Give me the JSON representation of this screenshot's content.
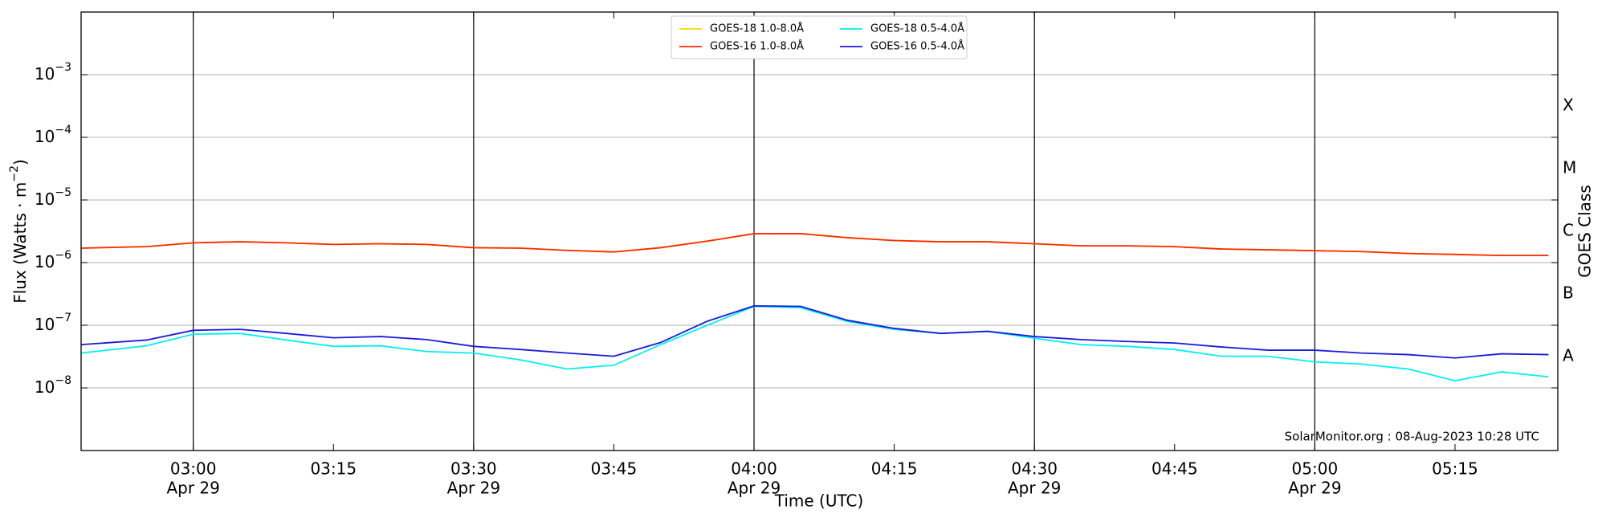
{
  "chart_data": {
    "type": "line",
    "xlabel": "Time (UTC)",
    "ylabel": {
      "text": "Flux (Watts · m",
      "sup": "−2",
      "end": ")"
    },
    "y2label": "GOES Class",
    "annotation": "SolarMonitor.org : 08-Aug-2023 10:28 UTC",
    "log_y": true,
    "grid": true,
    "legend": "top-center",
    "xlim": [
      "02:48",
      "05:26"
    ],
    "xticks": [
      {
        "value": "03:00",
        "label": "03:00",
        "date": "Apr 29"
      },
      {
        "value": "03:15",
        "label": "03:15"
      },
      {
        "value": "03:30",
        "label": "03:30",
        "date": "Apr 29"
      },
      {
        "value": "03:45",
        "label": "03:45"
      },
      {
        "value": "04:00",
        "label": "04:00",
        "date": "Apr 29"
      },
      {
        "value": "04:15",
        "label": "04:15"
      },
      {
        "value": "04:30",
        "label": "04:30",
        "date": "Apr 29"
      },
      {
        "value": "04:45",
        "label": "04:45"
      },
      {
        "value": "05:00",
        "label": "05:00",
        "date": "Apr 29"
      },
      {
        "value": "05:15",
        "label": "05:15"
      }
    ],
    "ylim": [
      1e-09,
      0.01
    ],
    "yticks": [
      {
        "value": 1e-08,
        "label": "10",
        "sup": "−8"
      },
      {
        "value": 1e-07,
        "label": "10",
        "sup": "−7"
      },
      {
        "value": 1e-06,
        "label": "10",
        "sup": "−6"
      },
      {
        "value": 1e-05,
        "label": "10",
        "sup": "−5"
      },
      {
        "value": 0.0001,
        "label": "10",
        "sup": "−4"
      },
      {
        "value": 0.001,
        "label": "10",
        "sup": "−3"
      }
    ],
    "y2ticks": [
      {
        "value": 3.162e-08,
        "label": "A"
      },
      {
        "value": 3.162e-07,
        "label": "B"
      },
      {
        "value": 3.162e-06,
        "label": "C"
      },
      {
        "value": 3.162e-05,
        "label": "M"
      },
      {
        "value": 0.0003162,
        "label": "X"
      }
    ],
    "x": [
      "02:48",
      "02:55",
      "03:00",
      "03:05",
      "03:10",
      "03:15",
      "03:20",
      "03:25",
      "03:30",
      "03:35",
      "03:40",
      "03:45",
      "03:50",
      "03:55",
      "04:00",
      "04:05",
      "04:10",
      "04:15",
      "04:20",
      "04:25",
      "04:30",
      "04:35",
      "04:40",
      "04:45",
      "04:50",
      "04:55",
      "05:00",
      "05:05",
      "05:10",
      "05:15",
      "05:20",
      "05:25"
    ],
    "series": [
      {
        "name": "GOES-18 1.0-8.0Å",
        "color": "#ffd700",
        "values": [
          1.7e-06,
          1.8e-06,
          2.07e-06,
          2.15e-06,
          2.07e-06,
          1.95e-06,
          2e-06,
          1.95e-06,
          1.73e-06,
          1.7e-06,
          1.57e-06,
          1.48e-06,
          1.73e-06,
          2.2e-06,
          2.9e-06,
          2.9e-06,
          2.5e-06,
          2.25e-06,
          2.15e-06,
          2.15e-06,
          2e-06,
          1.85e-06,
          1.85e-06,
          1.8e-06,
          1.65e-06,
          1.6e-06,
          1.55e-06,
          1.5e-06,
          1.4e-06,
          1.35e-06,
          1.3e-06,
          1.3e-06
        ]
      },
      {
        "name": "GOES-16 1.0-8.0Å",
        "color": "#ff2a00",
        "values": [
          1.7e-06,
          1.8e-06,
          2.07e-06,
          2.15e-06,
          2.07e-06,
          1.95e-06,
          2e-06,
          1.95e-06,
          1.73e-06,
          1.7e-06,
          1.57e-06,
          1.48e-06,
          1.73e-06,
          2.2e-06,
          2.9e-06,
          2.9e-06,
          2.5e-06,
          2.25e-06,
          2.15e-06,
          2.15e-06,
          2e-06,
          1.85e-06,
          1.85e-06,
          1.8e-06,
          1.65e-06,
          1.6e-06,
          1.55e-06,
          1.5e-06,
          1.4e-06,
          1.35e-06,
          1.3e-06,
          1.3e-06
        ]
      },
      {
        "name": "GOES-18 0.5-4.0Å",
        "color": "#00f0f0",
        "values": [
          3.6e-08,
          4.7e-08,
          7.2e-08,
          7.4e-08,
          5.8e-08,
          4.6e-08,
          4.7e-08,
          3.8e-08,
          3.6e-08,
          2.8e-08,
          2e-08,
          2.3e-08,
          4.9e-08,
          1e-07,
          2e-07,
          1.9e-07,
          1.15e-07,
          8.6e-08,
          7.4e-08,
          8e-08,
          6.2e-08,
          4.9e-08,
          4.6e-08,
          4.1e-08,
          3.2e-08,
          3.2e-08,
          2.6e-08,
          2.4e-08,
          2e-08,
          1.3e-08,
          1.8e-08,
          1.5e-08
        ]
      },
      {
        "name": "GOES-16 0.5-4.0Å",
        "color": "#1a1adb",
        "values": [
          4.9e-08,
          5.8e-08,
          8.3e-08,
          8.6e-08,
          7.4e-08,
          6.3e-08,
          6.6e-08,
          5.9e-08,
          4.6e-08,
          4.1e-08,
          3.6e-08,
          3.2e-08,
          5.3e-08,
          1.16e-07,
          2.04e-07,
          2e-07,
          1.2e-07,
          8.9e-08,
          7.4e-08,
          8e-08,
          6.6e-08,
          5.9e-08,
          5.5e-08,
          5.2e-08,
          4.5e-08,
          4e-08,
          4e-08,
          3.6e-08,
          3.4e-08,
          3e-08,
          3.5e-08,
          3.4e-08
        ]
      }
    ]
  }
}
